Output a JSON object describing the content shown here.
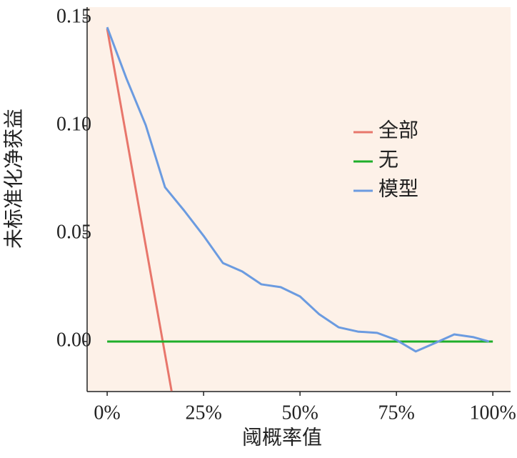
{
  "chart_data": {
    "type": "line",
    "x_label": "阈概率值",
    "y_label": "未标准化净获益",
    "xlim": [
      -0.052,
      1.046
    ],
    "ylim": [
      -0.0232,
      0.155
    ],
    "xticks": [
      {
        "value": 0,
        "label": "0%"
      },
      {
        "value": 0.25,
        "label": "25%"
      },
      {
        "value": 0.5,
        "label": "50%"
      },
      {
        "value": 0.75,
        "label": "75%"
      },
      {
        "value": 1,
        "label": "100%"
      }
    ],
    "yticks": [
      {
        "value": 0,
        "label": "0.00"
      },
      0.05,
      {
        "value": 0.1,
        "label": "0.10"
      },
      0.15
    ],
    "background": "#fdf1e8",
    "series": [
      {
        "name": "全部",
        "color": "#e8766b",
        "x": [
          0,
          0.167
        ],
        "values": [
          0.145,
          -0.023
        ]
      },
      {
        "name": "无",
        "color": "#1fae2a",
        "x": [
          0,
          1
        ],
        "values": [
          0,
          0
        ]
      },
      {
        "name": "模型",
        "color": "#6b9be0",
        "x": [
          0,
          0.05,
          0.1,
          0.15,
          0.2,
          0.25,
          0.3,
          0.35,
          0.4,
          0.45,
          0.5,
          0.55,
          0.6,
          0.65,
          0.7,
          0.75,
          0.8,
          0.85,
          0.9,
          0.95,
          0.99
        ],
        "values": [
          0.1457,
          0.1219,
          0.1003,
          0.0715,
          0.0606,
          0.049,
          0.0364,
          0.0325,
          0.0265,
          0.0252,
          0.0209,
          0.0126,
          0.0066,
          0.0046,
          0.004,
          0.0007,
          -0.0046,
          -0.0007,
          0.0033,
          0.002,
          0
        ]
      }
    ]
  }
}
